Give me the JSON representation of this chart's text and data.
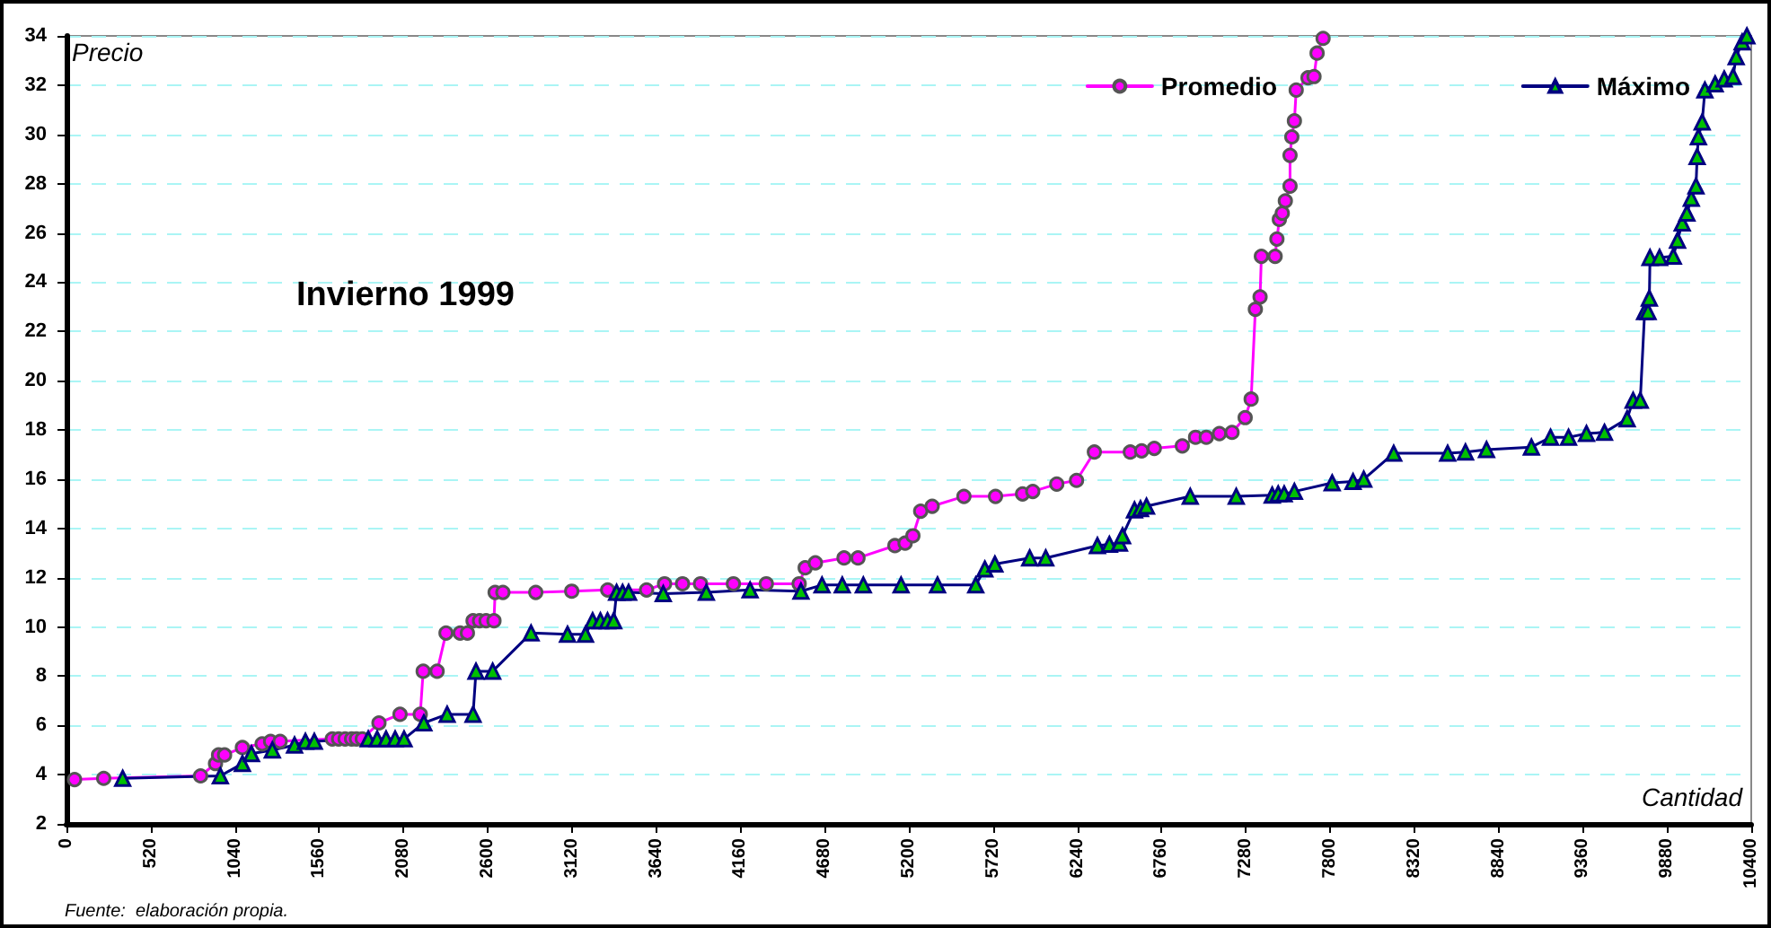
{
  "chart_data": {
    "type": "line",
    "title": "Invierno 1999",
    "xlabel": "Cantidad",
    "ylabel": "Precio",
    "annotations": [
      "Fuente:  elaboración propia."
    ],
    "xlim": [
      0,
      10400
    ],
    "xticks": [
      0,
      520,
      1040,
      1560,
      2080,
      2600,
      3120,
      3640,
      4160,
      4680,
      5200,
      5720,
      6240,
      6760,
      7280,
      7800,
      8320,
      8840,
      9360,
      9880,
      10400
    ],
    "ylim": [
      2,
      34
    ],
    "yticks": [
      2,
      4,
      6,
      8,
      10,
      12,
      14,
      16,
      18,
      20,
      22,
      24,
      26,
      28,
      30,
      32,
      34
    ],
    "grid": "y",
    "legend": "top right",
    "line_style": "solid",
    "series": [
      {
        "name": "Promedio",
        "color": "#ff00ff",
        "marker": "circle",
        "x": [
          50,
          230,
          828,
          920,
          939,
          976,
          1086,
          1208,
          1260,
          1319,
          1641,
          1680,
          1720,
          1760,
          1790,
          1826,
          1929,
          2059,
          2184,
          2202,
          2288,
          2343,
          2430,
          2475,
          2510,
          2550,
          2590,
          2639,
          2646,
          2694,
          2897,
          3119,
          3341,
          3581,
          3692,
          3803,
          3914,
          4117,
          4320,
          4523,
          4560,
          4623,
          4800,
          4886,
          5114,
          5177,
          5225,
          5273,
          5344,
          5540,
          5735,
          5902,
          5965,
          6113,
          6235,
          6345,
          6567,
          6637,
          6715,
          6888,
          6970,
          7036,
          7117,
          7195,
          7276,
          7313,
          7339,
          7368,
          7376,
          7461,
          7472,
          7487,
          7505,
          7524,
          7553,
          7553,
          7564,
          7580,
          7591,
          7664,
          7701,
          7720,
          7757
        ],
        "values": [
          3.8,
          3.85,
          3.95,
          4.45,
          4.8,
          4.8,
          5.1,
          5.25,
          5.35,
          5.35,
          5.45,
          5.45,
          5.45,
          5.45,
          5.45,
          5.45,
          6.1,
          6.45,
          6.45,
          8.2,
          8.2,
          9.75,
          9.75,
          9.75,
          10.25,
          10.25,
          10.25,
          10.25,
          11.4,
          11.4,
          11.4,
          11.45,
          11.5,
          11.5,
          11.75,
          11.75,
          11.75,
          11.75,
          11.75,
          11.75,
          12.4,
          12.6,
          12.8,
          12.8,
          13.3,
          13.4,
          13.7,
          14.7,
          14.9,
          15.3,
          15.3,
          15.4,
          15.5,
          15.8,
          15.95,
          17.1,
          17.1,
          17.15,
          17.25,
          17.35,
          17.7,
          17.7,
          17.85,
          17.9,
          18.5,
          19.25,
          22.9,
          23.4,
          25.05,
          25.05,
          25.75,
          26.55,
          26.8,
          27.3,
          27.9,
          29.15,
          29.9,
          30.55,
          31.8,
          32.3,
          32.35,
          33.3,
          33.9
        ]
      },
      {
        "name": "Máximo",
        "color": "#000080",
        "marker": "triangle",
        "x": [
          347,
          950,
          1086,
          1142,
          1271,
          1408,
          1475,
          1530,
          1863,
          1918,
          1973,
          2029,
          2084,
          2206,
          2350,
          2510,
          2528,
          2631,
          2868,
          3093,
          3204,
          3248,
          3296,
          3340,
          3378,
          3396,
          3433,
          3470,
          3684,
          3950,
          4220,
          4534,
          4664,
          4789,
          4919,
          5152,
          5377,
          5613,
          5669,
          5731,
          5946,
          6045,
          6364,
          6438,
          6500,
          6519,
          6593,
          6630,
          6667,
          6937,
          7221,
          7443,
          7480,
          7517,
          7580,
          7813,
          7942,
          8008,
          8193,
          8526,
          8636,
          8766,
          9043,
          9161,
          9272,
          9383,
          9494,
          9634,
          9671,
          9715,
          9742,
          9763,
          9771,
          9775,
          9834,
          9919,
          9945,
          9974,
          10003,
          10030,
          10059,
          10066,
          10074,
          10097,
          10114,
          10177,
          10233,
          10288,
          10307,
          10344,
          10373
        ],
        "values": [
          3.85,
          3.95,
          4.45,
          4.85,
          5.0,
          5.2,
          5.35,
          5.35,
          5.45,
          5.45,
          5.45,
          5.45,
          5.45,
          6.1,
          6.45,
          6.45,
          8.2,
          8.2,
          9.75,
          9.7,
          9.7,
          10.25,
          10.25,
          10.25,
          10.25,
          11.4,
          11.4,
          11.4,
          11.35,
          11.4,
          11.5,
          11.45,
          11.7,
          11.7,
          11.7,
          11.7,
          11.7,
          11.7,
          12.35,
          12.55,
          12.8,
          12.8,
          13.3,
          13.35,
          13.4,
          13.7,
          14.75,
          14.8,
          14.9,
          15.3,
          15.3,
          15.35,
          15.4,
          15.4,
          15.5,
          15.85,
          15.9,
          16.0,
          17.05,
          17.05,
          17.1,
          17.2,
          17.3,
          17.7,
          17.7,
          17.85,
          17.9,
          18.45,
          19.2,
          19.2,
          22.8,
          22.8,
          23.35,
          25.0,
          25.0,
          25.05,
          25.7,
          26.4,
          26.8,
          27.4,
          27.9,
          29.1,
          29.9,
          30.5,
          31.8,
          32.05,
          32.25,
          32.35,
          33.15,
          33.75,
          34.0
        ]
      }
    ]
  }
}
